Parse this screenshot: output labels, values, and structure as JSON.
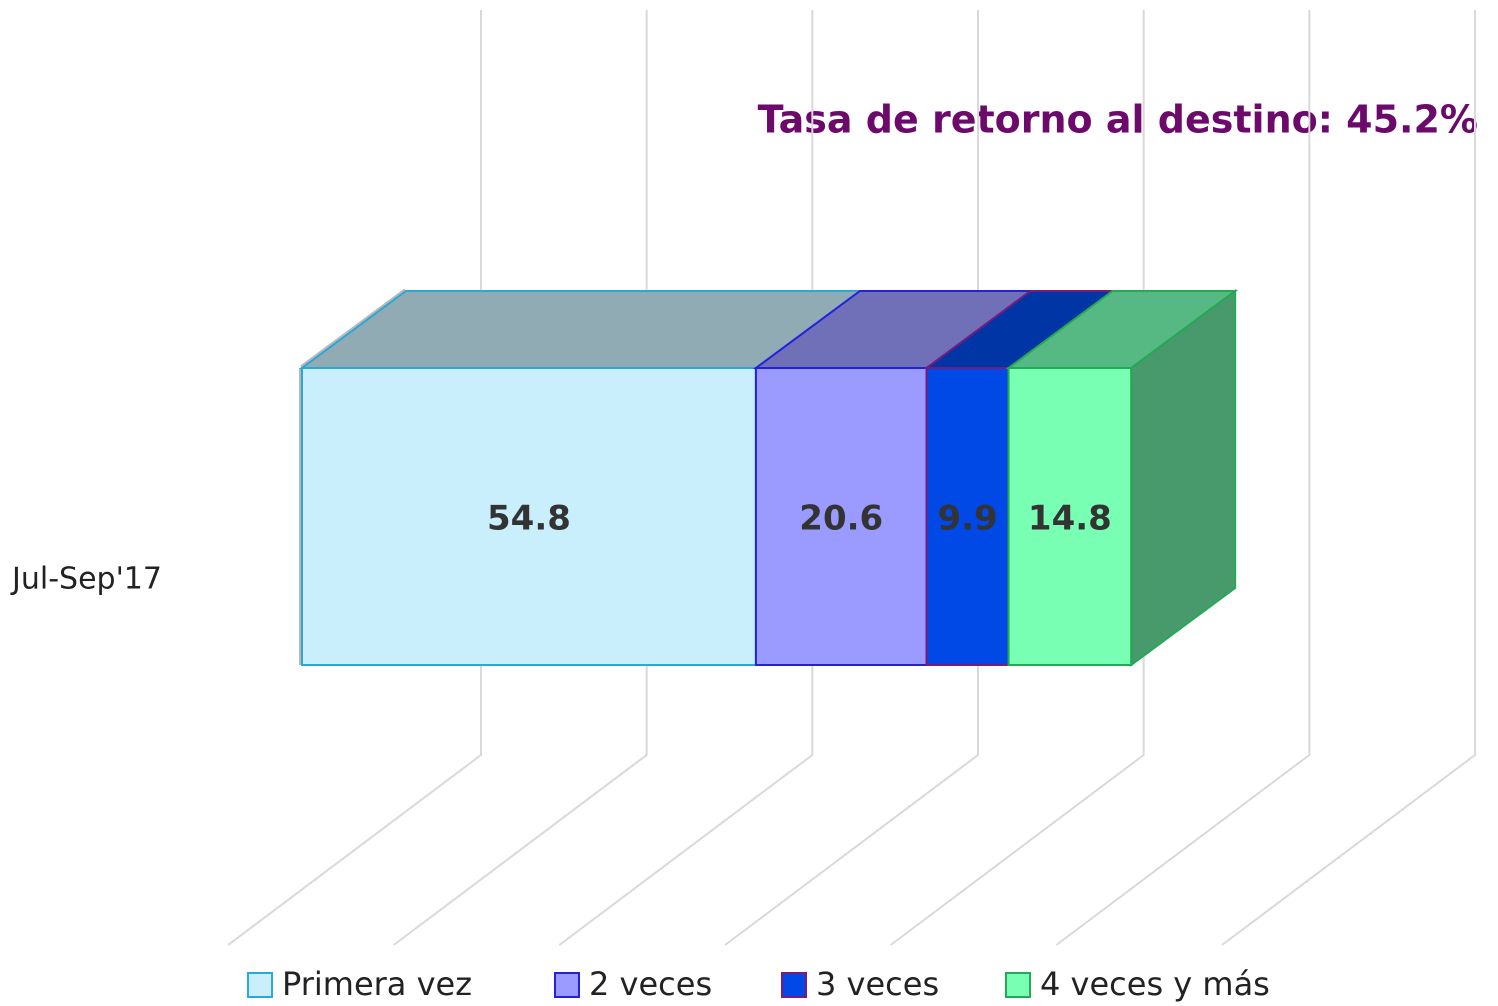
{
  "chart_data": {
    "type": "stacked-bar-3d",
    "orientation": "horizontal",
    "title": "Tasa de retorno al destino: 45.2%",
    "categories": [
      "Jul-Sep'17"
    ],
    "series": [
      {
        "name": "Primera vez",
        "color": "#c9eefc",
        "values": [
          54.8
        ]
      },
      {
        "name": "2 veces",
        "color": "#9b9bff",
        "values": [
          20.6
        ]
      },
      {
        "name": "3 veces",
        "color": "#0049e6",
        "values": [
          9.9
        ]
      },
      {
        "name": "4 veces y más",
        "color": "#78ffb4",
        "values": [
          14.8
        ]
      }
    ],
    "xlim": [
      0,
      120
    ],
    "xticks": [
      0,
      20,
      40,
      60,
      80,
      100,
      120
    ],
    "grid": true,
    "legend": "bottom"
  }
}
